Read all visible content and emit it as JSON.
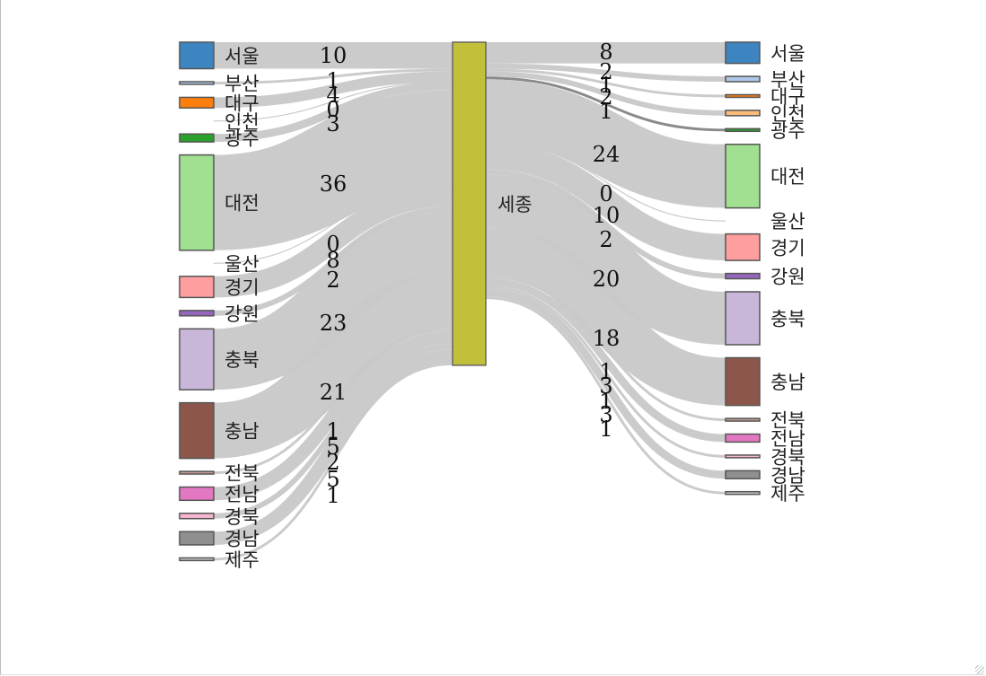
{
  "chart_data": {
    "type": "sankey",
    "center": {
      "name": "세종",
      "color": "#c2c03a"
    },
    "sources": [
      {
        "name": "서울",
        "value": 10,
        "color": "#3c85c0"
      },
      {
        "name": "부산",
        "value": 1,
        "color": "#aec7e8"
      },
      {
        "name": "대구",
        "value": 4,
        "color": "#ff7f0e"
      },
      {
        "name": "인천",
        "value": 0,
        "color": "#ffbb78"
      },
      {
        "name": "광주",
        "value": 3,
        "color": "#2ca02c"
      },
      {
        "name": "대전",
        "value": 36,
        "color": "#a1e090"
      },
      {
        "name": "울산",
        "value": 0,
        "color": "#d62728"
      },
      {
        "name": "경기",
        "value": 8,
        "color": "#ff9e9e"
      },
      {
        "name": "강원",
        "value": 2,
        "color": "#9467bd"
      },
      {
        "name": "충북",
        "value": 23,
        "color": "#c9b7da"
      },
      {
        "name": "충남",
        "value": 21,
        "color": "#8c564b"
      },
      {
        "name": "전북",
        "value": 1,
        "color": "#c49c94"
      },
      {
        "name": "전남",
        "value": 5,
        "color": "#e377c2"
      },
      {
        "name": "경북",
        "value": 2,
        "color": "#f7b6d2"
      },
      {
        "name": "경남",
        "value": 5,
        "color": "#8f8f8f"
      },
      {
        "name": "제주",
        "value": 1,
        "color": "#c7c7c7"
      }
    ],
    "targets": [
      {
        "name": "서울",
        "value": 8,
        "color": "#3c85c0"
      },
      {
        "name": "부산",
        "value": 2,
        "color": "#aec7e8"
      },
      {
        "name": "대구",
        "value": 1,
        "color": "#ff7f0e"
      },
      {
        "name": "인천",
        "value": 2,
        "color": "#ffbb78"
      },
      {
        "name": "광주",
        "value": 1,
        "color": "#2ca02c"
      },
      {
        "name": "대전",
        "value": 24,
        "color": "#a1e090"
      },
      {
        "name": "울산",
        "value": 0,
        "color": "#d62728"
      },
      {
        "name": "경기",
        "value": 10,
        "color": "#ff9e9e"
      },
      {
        "name": "강원",
        "value": 2,
        "color": "#9467bd"
      },
      {
        "name": "충북",
        "value": 20,
        "color": "#c9b7da"
      },
      {
        "name": "충남",
        "value": 18,
        "color": "#8c564b"
      },
      {
        "name": "전북",
        "value": 1,
        "color": "#c49c94"
      },
      {
        "name": "전남",
        "value": 3,
        "color": "#e377c2"
      },
      {
        "name": "경북",
        "value": 1,
        "color": "#f7b6d2"
      },
      {
        "name": "경남",
        "value": 3,
        "color": "#8f8f8f"
      },
      {
        "name": "제주",
        "value": 1,
        "color": "#c7c7c7"
      }
    ],
    "highlighted_target": "광주"
  }
}
